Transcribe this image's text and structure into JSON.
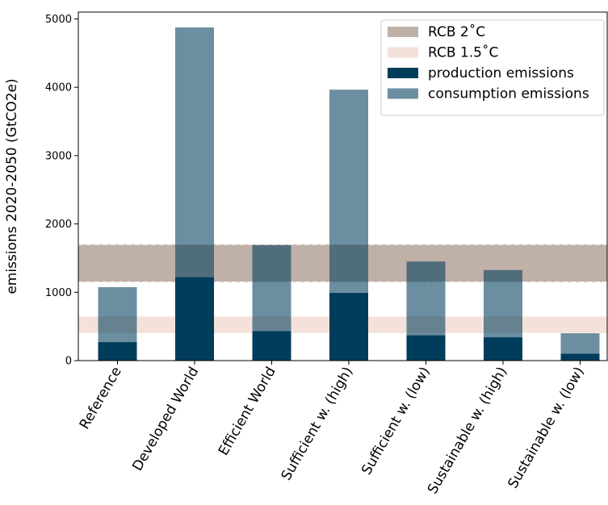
{
  "chart_data": {
    "type": "bar",
    "title": "",
    "xlabel": "",
    "ylabel": "emissions 2020-2050 (GtCO2e)",
    "ylim": [
      0,
      5100
    ],
    "yticks": [
      0,
      1000,
      2000,
      3000,
      4000,
      5000
    ],
    "ytick_labels": [
      "0",
      "1000",
      "2000",
      "3000",
      "4000",
      "5000"
    ],
    "grid": false,
    "legend_position": "top-right",
    "categories": [
      "Reference",
      "Developed World",
      "Efficient World",
      "Sufficient w. (high)",
      "Sufficient w. (low)",
      "Sustainable w. (high)",
      "Sustainable w. (low)"
    ],
    "series": [
      {
        "name": "production emissions",
        "color": "#003d5b",
        "values": [
          270,
          1220,
          430,
          990,
          370,
          340,
          100
        ]
      },
      {
        "name": "consumption emissions",
        "color": "#6a8fa2",
        "values": [
          1075,
          4875,
          1690,
          3965,
          1450,
          1325,
          400
        ]
      }
    ],
    "bands": [
      {
        "name": "RCB 2˚C",
        "color": "#bfb0a8",
        "range": [
          1150,
          1700
        ]
      },
      {
        "name": "RCB 1.5˚C",
        "color": "#f4e2da",
        "range": [
          400,
          650
        ]
      }
    ],
    "legend": [
      "RCB 2˚C",
      "RCB 1.5˚C",
      "production emissions",
      "consumption emissions"
    ]
  }
}
